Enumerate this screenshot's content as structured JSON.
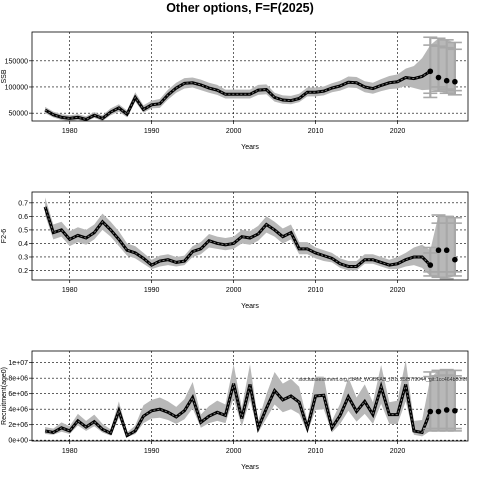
{
  "title": "Other options, F=F(2025)",
  "chart_data": [
    {
      "type": "line",
      "xlabel": "Years",
      "ylabel": "SSB",
      "xlim": [
        1975.4,
        2028.6
      ],
      "ylim": [
        35000,
        205000
      ],
      "xticks": [
        1980,
        1990,
        2000,
        2010,
        2020
      ],
      "yticks": [
        50000,
        100000,
        150000
      ],
      "ytick_labels": [
        "50000",
        "100000",
        "150000"
      ],
      "grid": true,
      "x": [
        1977,
        1978,
        1979,
        1980,
        1981,
        1982,
        1983,
        1984,
        1985,
        1986,
        1987,
        1988,
        1989,
        1990,
        1991,
        1992,
        1993,
        1994,
        1995,
        1996,
        1997,
        1998,
        1999,
        2000,
        2001,
        2002,
        2003,
        2004,
        2005,
        2006,
        2007,
        2008,
        2009,
        2010,
        2011,
        2012,
        2013,
        2014,
        2015,
        2016,
        2017,
        2018,
        2019,
        2020,
        2021,
        2022,
        2023,
        2024
      ],
      "median": [
        56000,
        47000,
        42000,
        40000,
        42000,
        38000,
        46000,
        40000,
        52000,
        60000,
        48000,
        80000,
        57000,
        66000,
        68000,
        85000,
        98000,
        107000,
        108000,
        104000,
        98000,
        94000,
        86000,
        86000,
        86000,
        86000,
        94000,
        95000,
        80000,
        75000,
        74000,
        78000,
        90000,
        90000,
        92000,
        98000,
        102000,
        109000,
        108000,
        100000,
        97000,
        103000,
        108000,
        110000,
        118000,
        116000,
        120000,
        130000
      ],
      "lower": [
        50000,
        42000,
        37000,
        35000,
        37000,
        34000,
        41000,
        35000,
        46000,
        53000,
        42000,
        72000,
        51000,
        59000,
        60000,
        76000,
        89000,
        97000,
        99000,
        94000,
        89000,
        85000,
        78000,
        78000,
        78000,
        78000,
        85000,
        86000,
        72000,
        68000,
        67000,
        71000,
        82000,
        82000,
        84000,
        90000,
        93000,
        99000,
        98000,
        90000,
        87000,
        92000,
        96000,
        97000,
        102000,
        98000,
        94000,
        95000
      ],
      "upper": [
        62000,
        53000,
        48000,
        46000,
        48000,
        44000,
        52000,
        46000,
        59000,
        67000,
        55000,
        90000,
        65000,
        74000,
        77000,
        95000,
        108000,
        117000,
        118000,
        114000,
        108000,
        104000,
        95000,
        95000,
        95000,
        95000,
        104000,
        105000,
        89000,
        84000,
        83000,
        87000,
        99000,
        99000,
        101000,
        107000,
        112000,
        120000,
        119000,
        111000,
        108000,
        115000,
        121000,
        124000,
        135000,
        140000,
        155000,
        180000
      ],
      "projection": {
        "x": [
          2024,
          2025,
          2026,
          2027
        ],
        "median": [
          130000,
          118000,
          112000,
          110000
        ],
        "lower": [
          80000,
          92000,
          88000,
          85000
        ],
        "upper": [
          195000,
          193000,
          190000,
          185000
        ],
        "inner_lower": [
          88000,
          100000,
          96000,
          93000
        ],
        "inner_upper": [
          180000,
          178000,
          175000,
          172000
        ]
      }
    },
    {
      "type": "line",
      "xlabel": "Years",
      "ylabel": "F2-6",
      "xlim": [
        1975.4,
        2028.6
      ],
      "ylim": [
        0.13,
        0.78
      ],
      "xticks": [
        1980,
        1990,
        2000,
        2010,
        2020
      ],
      "yticks": [
        0.2,
        0.3,
        0.4,
        0.5,
        0.6,
        0.7
      ],
      "ytick_labels": [
        "0.2",
        "0.3",
        "0.4",
        "0.5",
        "0.6",
        "0.7"
      ],
      "grid": true,
      "x": [
        1977,
        1978,
        1979,
        1980,
        1981,
        1982,
        1983,
        1984,
        1985,
        1986,
        1987,
        1988,
        1989,
        1990,
        1991,
        1992,
        1993,
        1994,
        1995,
        1996,
        1997,
        1998,
        1999,
        2000,
        2001,
        2002,
        2003,
        2004,
        2005,
        2006,
        2007,
        2008,
        2009,
        2010,
        2011,
        2012,
        2013,
        2014,
        2015,
        2016,
        2017,
        2018,
        2019,
        2020,
        2021,
        2022,
        2023,
        2024
      ],
      "median": [
        0.67,
        0.48,
        0.5,
        0.43,
        0.46,
        0.44,
        0.48,
        0.56,
        0.5,
        0.43,
        0.35,
        0.33,
        0.29,
        0.24,
        0.27,
        0.28,
        0.26,
        0.27,
        0.34,
        0.36,
        0.42,
        0.4,
        0.39,
        0.4,
        0.45,
        0.44,
        0.47,
        0.54,
        0.5,
        0.45,
        0.48,
        0.36,
        0.36,
        0.33,
        0.31,
        0.29,
        0.25,
        0.23,
        0.23,
        0.28,
        0.28,
        0.26,
        0.24,
        0.25,
        0.28,
        0.3,
        0.3,
        0.24
      ],
      "lower": [
        0.61,
        0.43,
        0.45,
        0.38,
        0.41,
        0.39,
        0.43,
        0.5,
        0.45,
        0.38,
        0.31,
        0.29,
        0.25,
        0.21,
        0.23,
        0.24,
        0.23,
        0.24,
        0.3,
        0.32,
        0.37,
        0.36,
        0.35,
        0.36,
        0.4,
        0.39,
        0.42,
        0.48,
        0.45,
        0.4,
        0.43,
        0.32,
        0.32,
        0.29,
        0.27,
        0.26,
        0.22,
        0.2,
        0.2,
        0.25,
        0.25,
        0.23,
        0.21,
        0.21,
        0.23,
        0.24,
        0.22,
        0.16
      ],
      "upper": [
        0.74,
        0.54,
        0.56,
        0.49,
        0.52,
        0.5,
        0.54,
        0.62,
        0.56,
        0.49,
        0.4,
        0.38,
        0.33,
        0.28,
        0.31,
        0.32,
        0.3,
        0.31,
        0.38,
        0.41,
        0.47,
        0.45,
        0.44,
        0.45,
        0.5,
        0.49,
        0.53,
        0.6,
        0.56,
        0.51,
        0.54,
        0.41,
        0.41,
        0.37,
        0.35,
        0.33,
        0.29,
        0.27,
        0.27,
        0.32,
        0.32,
        0.3,
        0.28,
        0.3,
        0.33,
        0.37,
        0.39,
        0.35
      ],
      "projection": {
        "x": [
          2024,
          2025,
          2026,
          2027
        ],
        "median": [
          0.24,
          0.35,
          0.35,
          0.28
        ],
        "lower": [
          0.16,
          0.15,
          0.14,
          0.16
        ],
        "upper": [
          0.37,
          0.61,
          0.6,
          0.59
        ],
        "inner_lower": [
          0.19,
          0.19,
          0.19,
          0.19
        ],
        "inner_upper": [
          0.33,
          0.55,
          0.55,
          0.55
        ]
      }
    },
    {
      "type": "line",
      "xlabel": "Years",
      "ylabel": "Recruitment(age0)",
      "annotation": "stockassessment.org, SAM_WGBFAS_ID1, 25f57f9044_git:1cc464b80f6f",
      "xlim": [
        1975.4,
        2028.6
      ],
      "ylim": [
        -100000,
        11500000
      ],
      "xticks": [
        1980,
        1990,
        2000,
        2010,
        2020
      ],
      "yticks": [
        0,
        2000000,
        4000000,
        6000000,
        8000000,
        10000000
      ],
      "ytick_labels": [
        "0e+00",
        "2e+06",
        "4e+06",
        "6e+06",
        "8e+06",
        "1e+07"
      ],
      "grid": true,
      "x": [
        1977,
        1978,
        1979,
        1980,
        1981,
        1982,
        1983,
        1984,
        1985,
        1986,
        1987,
        1988,
        1989,
        1990,
        1991,
        1992,
        1993,
        1994,
        1995,
        1996,
        1997,
        1998,
        1999,
        2000,
        2001,
        2002,
        2003,
        2004,
        2005,
        2006,
        2007,
        2008,
        2009,
        2010,
        2011,
        2012,
        2013,
        2014,
        2015,
        2016,
        2017,
        2018,
        2019,
        2020,
        2021,
        2022,
        2023,
        2024
      ],
      "median": [
        1200000,
        1000000,
        1600000,
        1200000,
        2500000,
        1700000,
        2400000,
        1400000,
        900000,
        3800000,
        600000,
        1200000,
        3100000,
        3800000,
        4000000,
        3600000,
        3000000,
        3800000,
        5500000,
        2300000,
        3100000,
        3600000,
        3200000,
        7300000,
        2800000,
        7200000,
        1600000,
        4100000,
        6400000,
        5200000,
        5700000,
        4900000,
        1600000,
        5700000,
        5800000,
        1600000,
        3200000,
        5600000,
        3700000,
        5000000,
        3300000,
        6900000,
        3300000,
        3300000,
        7200000,
        1200000,
        1000000,
        3700000
      ],
      "lower": [
        800000,
        700000,
        1100000,
        800000,
        1900000,
        1200000,
        1800000,
        1000000,
        600000,
        2900000,
        400000,
        800000,
        2200000,
        2800000,
        2900000,
        2600000,
        2100000,
        2700000,
        4100000,
        1600000,
        2200000,
        2500000,
        2200000,
        5400000,
        1800000,
        5200000,
        1000000,
        2800000,
        4600000,
        3600000,
        4000000,
        3400000,
        1000000,
        3900000,
        4000000,
        1000000,
        2100000,
        3800000,
        2400000,
        3400000,
        2100000,
        4700000,
        2100000,
        2100000,
        5000000,
        700000,
        500000,
        1200000
      ],
      "upper": [
        1700000,
        1500000,
        2300000,
        1800000,
        3400000,
        2500000,
        3300000,
        2100000,
        1400000,
        5000000,
        1000000,
        1900000,
        4500000,
        5200000,
        5500000,
        5000000,
        4300000,
        5300000,
        7500000,
        3300000,
        4400000,
        5100000,
        4600000,
        9800000,
        4200000,
        9800000,
        2500000,
        5900000,
        8800000,
        7300000,
        7900000,
        6900000,
        2500000,
        8200000,
        8200000,
        2500000,
        4700000,
        8100000,
        5500000,
        7200000,
        4900000,
        9700000,
        4900000,
        5100000,
        10300000,
        2500000,
        2600000,
        8000000
      ],
      "projection": {
        "x": [
          2024,
          2025,
          2026,
          2027
        ],
        "median": [
          3700000,
          3700000,
          3900000,
          3800000
        ],
        "lower": [
          1200000,
          1200000,
          1200000,
          1200000
        ],
        "upper": [
          8800000,
          9000000,
          9100000,
          9000000
        ],
        "inner_lower": [
          1500000,
          1500000,
          1500000,
          1500000
        ],
        "inner_upper": [
          8200000,
          8300000,
          8400000,
          8300000
        ]
      }
    }
  ]
}
